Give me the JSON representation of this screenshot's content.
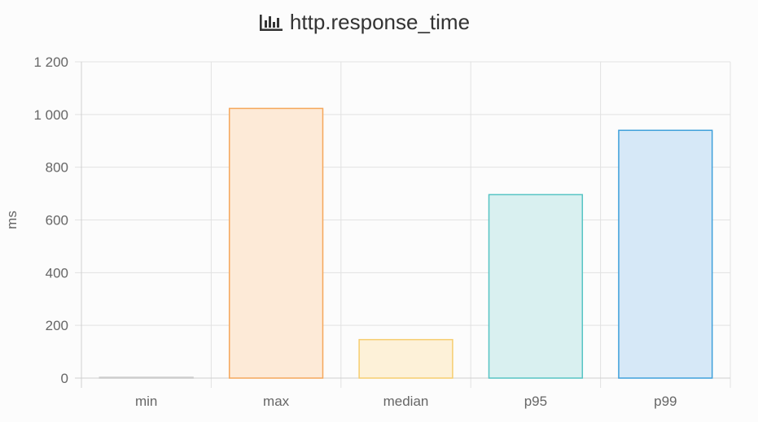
{
  "chart_data": {
    "type": "bar",
    "title": "http.response_time",
    "title_icon": "bar-chart-icon",
    "ylabel": "ms",
    "xlabel": "",
    "categories": [
      "min",
      "max",
      "median",
      "p95",
      "p99"
    ],
    "values": [
      0,
      1023,
      146,
      696,
      940
    ],
    "ylim": [
      0,
      1200
    ],
    "yticks": [
      0,
      200,
      400,
      600,
      800,
      1000,
      1200
    ],
    "ytick_labels": [
      "0",
      "200",
      "400",
      "600",
      "800",
      "1 000",
      "1 200"
    ],
    "grid": true,
    "legend": "none",
    "fill_colors": [
      "#eeeeee",
      "#fdead7",
      "#fdf1d8",
      "#d9f0f0",
      "#d6e8f7"
    ],
    "border_colors": [
      "#cccccc",
      "#f5a75b",
      "#f6cd6f",
      "#56c4c4",
      "#3ea0db"
    ]
  }
}
